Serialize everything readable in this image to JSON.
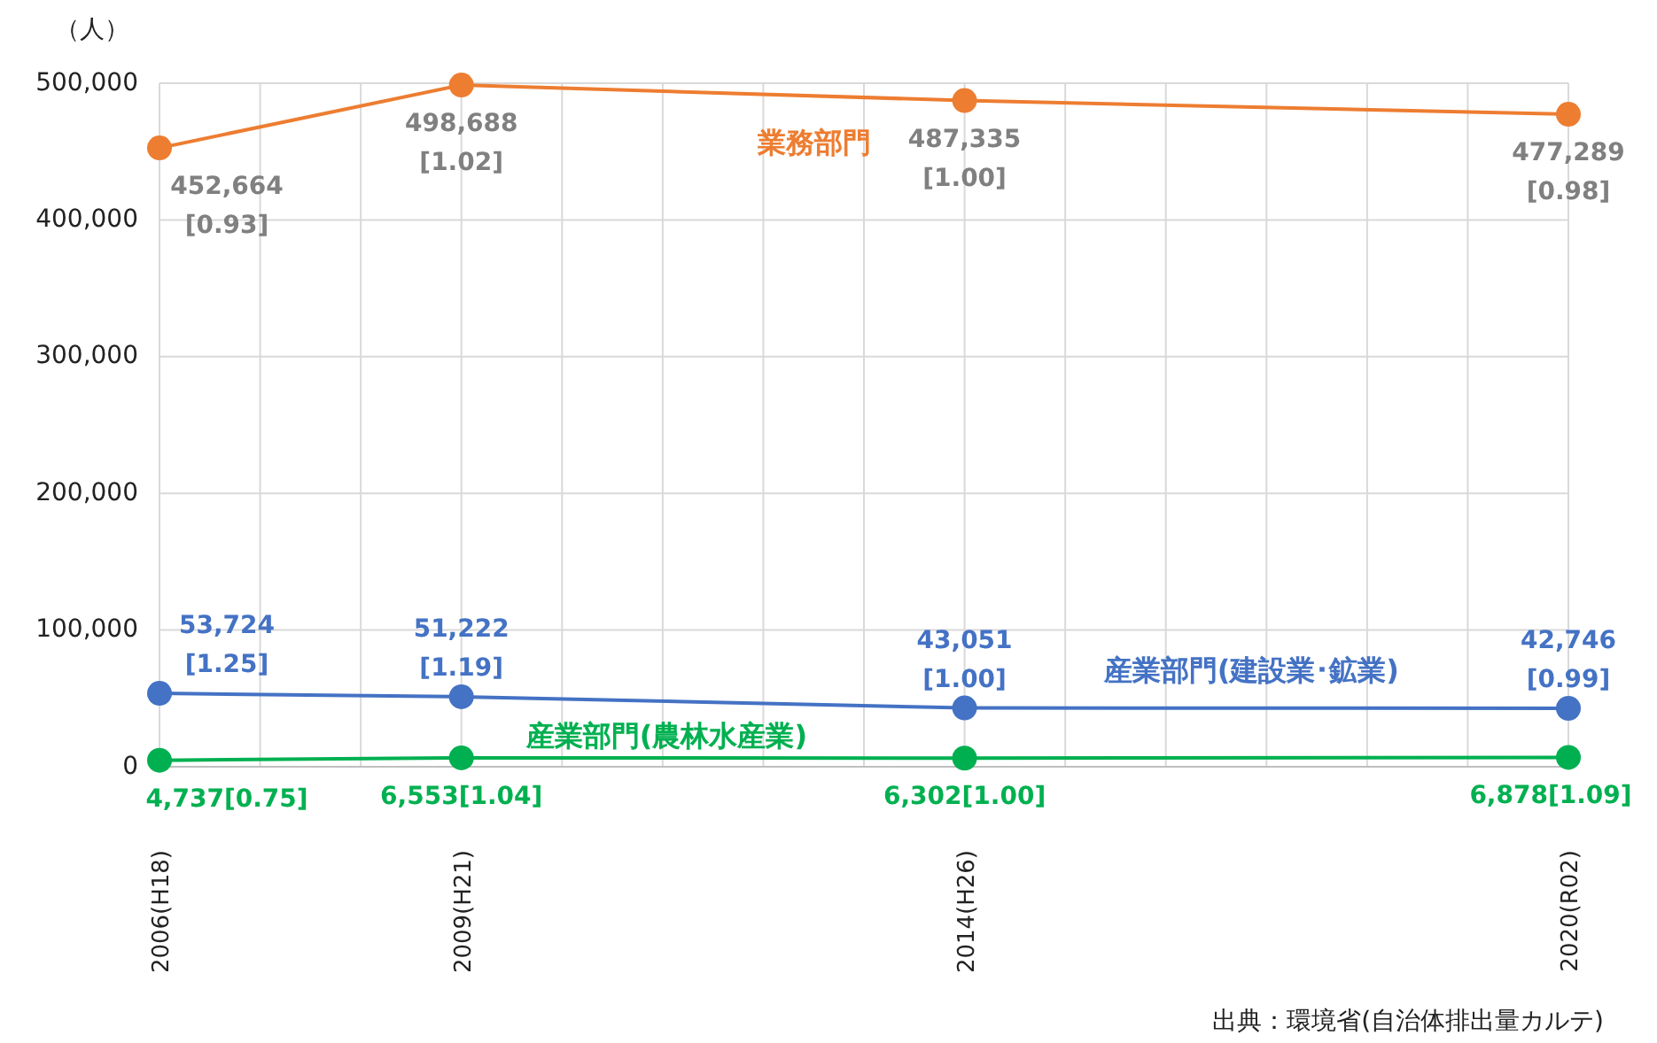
{
  "chart_data": {
    "type": "line",
    "ylabel": "（人）",
    "categories": [
      "2006(H18)",
      null,
      null,
      "2009(H21)",
      null,
      null,
      null,
      null,
      "2014(H26)",
      null,
      null,
      null,
      null,
      null,
      "2020(R02)"
    ],
    "ylim": [
      0,
      500000
    ],
    "yticks": [
      {
        "value": 0,
        "label": "0"
      },
      {
        "value": 100000,
        "label": "100,000"
      },
      {
        "value": 200000,
        "label": "200,000"
      },
      {
        "value": 300000,
        "label": "300,000"
      },
      {
        "value": 400000,
        "label": "400,000"
      },
      {
        "value": 500000,
        "label": "500,000"
      }
    ],
    "grid": true,
    "marker": "circle",
    "line_style": "solid",
    "series": [
      {
        "name": "業務部門",
        "color": "#ed7d31",
        "values": [
          452664,
          null,
          null,
          498688,
          null,
          null,
          null,
          null,
          487335,
          null,
          null,
          null,
          null,
          null,
          477289
        ],
        "value_labels": [
          "452,664\n[0.93]",
          null,
          null,
          "498,688\n[1.02]",
          null,
          null,
          null,
          null,
          "487,335\n[1.00]",
          null,
          null,
          null,
          null,
          null,
          "477,289\n[0.98]"
        ]
      },
      {
        "name": "産業部門(建設業･鉱業)",
        "color": "#4472c4",
        "values": [
          53724,
          null,
          null,
          51222,
          null,
          null,
          null,
          null,
          43051,
          null,
          null,
          null,
          null,
          null,
          42746
        ],
        "value_labels": [
          "53,724\n[1.25]",
          null,
          null,
          "51,222\n[1.19]",
          null,
          null,
          null,
          null,
          "43,051\n[1.00]",
          null,
          null,
          null,
          null,
          null,
          "42,746\n[0.99]"
        ]
      },
      {
        "name": "産業部門(農林水産業)",
        "color": "#00b050",
        "values": [
          4737,
          null,
          null,
          6553,
          null,
          null,
          null,
          null,
          6302,
          null,
          null,
          null,
          null,
          null,
          6878
        ],
        "value_labels": [
          "4,737[0.75]",
          null,
          null,
          "6,553[1.04]",
          null,
          null,
          null,
          null,
          "6,302[1.00]",
          null,
          null,
          null,
          null,
          null,
          "6,878[1.09]"
        ]
      }
    ],
    "annotations": [
      "出典：環境省(自治体排出量カルテ)"
    ]
  }
}
